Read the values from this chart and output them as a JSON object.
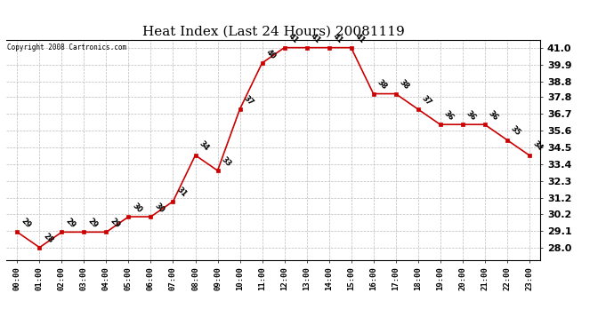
{
  "title": "Heat Index (Last 24 Hours) 20081119",
  "copyright": "Copyright 2008 Cartronics.com",
  "x_labels": [
    "00:00",
    "01:00",
    "02:00",
    "03:00",
    "04:00",
    "05:00",
    "06:00",
    "07:00",
    "08:00",
    "09:00",
    "10:00",
    "11:00",
    "12:00",
    "13:00",
    "14:00",
    "15:00",
    "16:00",
    "17:00",
    "18:00",
    "19:00",
    "20:00",
    "21:00",
    "22:00",
    "23:00"
  ],
  "y_values": [
    29,
    28,
    29,
    29,
    29,
    30,
    30,
    31,
    34,
    33,
    37,
    40,
    41,
    41,
    41,
    41,
    38,
    38,
    37,
    36,
    36,
    36,
    35,
    34
  ],
  "ylim_min": 28.0,
  "ylim_max": 41.0,
  "y_ticks": [
    28.0,
    29.1,
    30.2,
    31.2,
    32.3,
    33.4,
    34.5,
    35.6,
    36.7,
    37.8,
    38.8,
    39.9,
    41.0
  ],
  "line_color": "#cc0000",
  "marker_color": "#cc0000",
  "bg_color": "#ffffff",
  "grid_color": "#bbbbbb",
  "title_fontsize": 11,
  "label_fontsize": 6.5,
  "annotation_fontsize": 6,
  "ytick_fontsize": 8,
  "copyright_fontsize": 5.5
}
